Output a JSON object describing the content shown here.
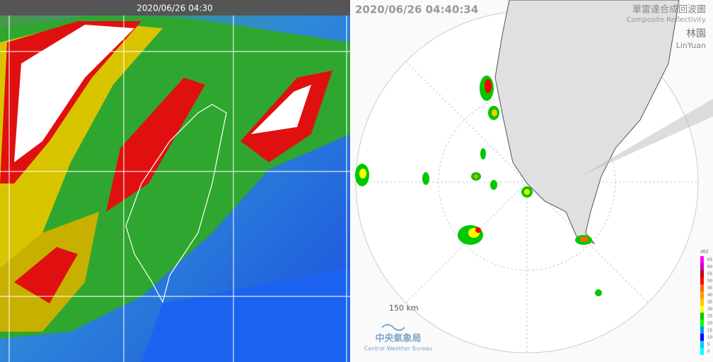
{
  "satellite": {
    "timestamp": "2020/06/26 04:30"
  },
  "radar": {
    "timestamp": "2020/06/26 04:40:34",
    "title_zh": "單雷達合成回波圖",
    "title_en": "Composite Reflectivity",
    "station_zh": "林園",
    "station_en": "LinYuan",
    "range_label": "150 km",
    "agency_zh": "中央氣象局",
    "agency_en": "Central Weather Bureau",
    "legend": {
      "title": "dBZ",
      "labels": [
        "65",
        "60",
        "55",
        "50",
        "45",
        "40",
        "35",
        "30",
        "25",
        "20",
        "15",
        "10",
        "5",
        "0"
      ],
      "colors": [
        "#ff00ff",
        "#c800c8",
        "#c80000",
        "#ff0000",
        "#ff6400",
        "#ff9600",
        "#ffc800",
        "#ffff00",
        "#00c800",
        "#00ff00",
        "#0096ff",
        "#0000ff",
        "#00c8ff",
        "#00ffff"
      ]
    }
  }
}
